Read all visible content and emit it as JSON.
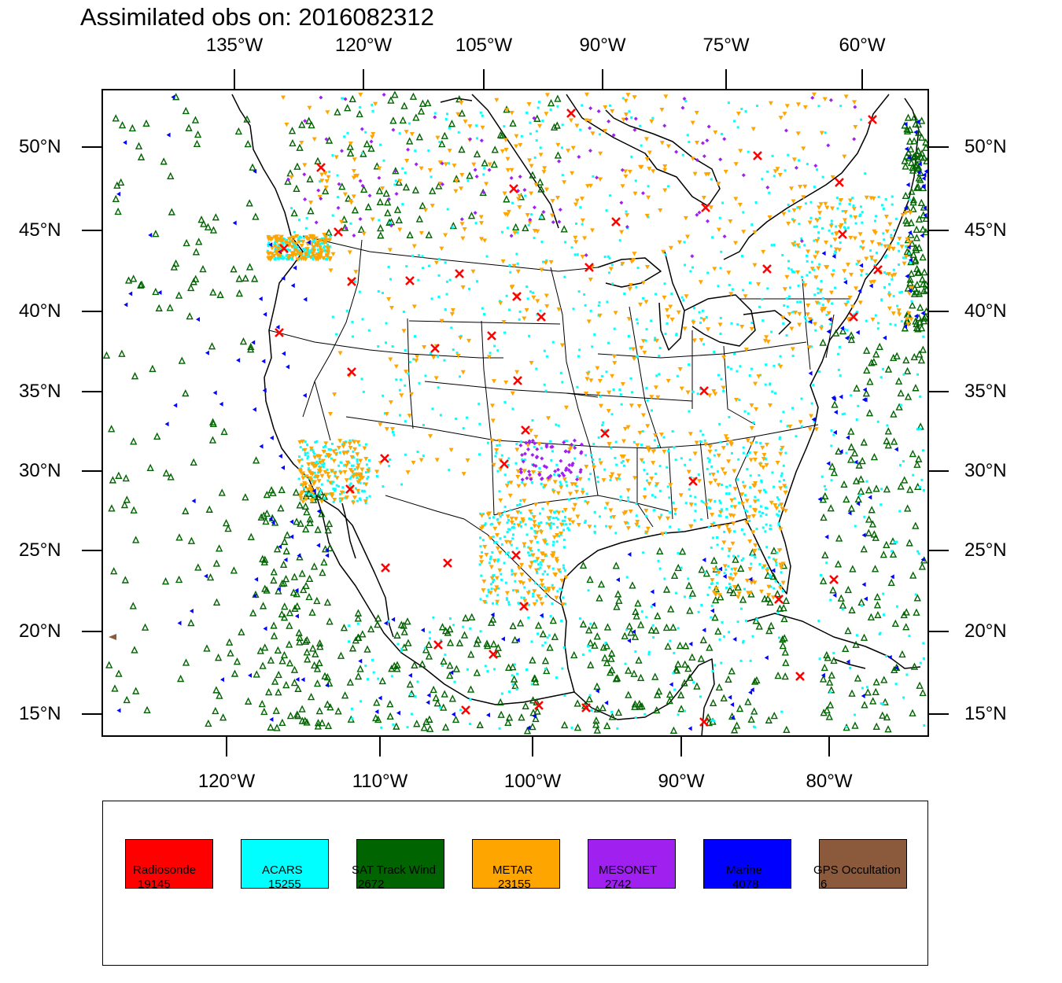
{
  "title": "Assimilated obs on: 2016082312",
  "top_lon_labels": [
    "135°W",
    "120°W",
    "105°W",
    "90°W",
    "75°W",
    "60°W"
  ],
  "bottom_lon_labels": [
    "120°W",
    "110°W",
    "100°W",
    "90°W",
    "80°W"
  ],
  "lat_labels": [
    "50°N",
    "45°N",
    "40°N",
    "35°N",
    "30°N",
    "25°N",
    "20°N",
    "15°N"
  ],
  "legend": [
    {
      "name": "Radiosonde",
      "count": "19145",
      "color": "#ff0000",
      "marker": "x-cross-icon"
    },
    {
      "name": "ACARS",
      "count": "15255",
      "color": "#00ffff",
      "marker": "square-dot-icon"
    },
    {
      "name": "SAT Track Wind",
      "count": "2672",
      "color": "#006400",
      "marker": "triangle-up-icon"
    },
    {
      "name": "METAR",
      "count": "23155",
      "color": "#ffa500",
      "marker": "triangle-down-icon"
    },
    {
      "name": "MESONET",
      "count": "2742",
      "color": "#a020f0",
      "marker": "diamond-icon"
    },
    {
      "name": "Marine",
      "count": "4078",
      "color": "#0000ff",
      "marker": "triangle-left-icon"
    },
    {
      "name": "GPS Occultation",
      "count": "6",
      "color": "#8b5a3c",
      "marker": "triangle-left-icon"
    }
  ]
}
